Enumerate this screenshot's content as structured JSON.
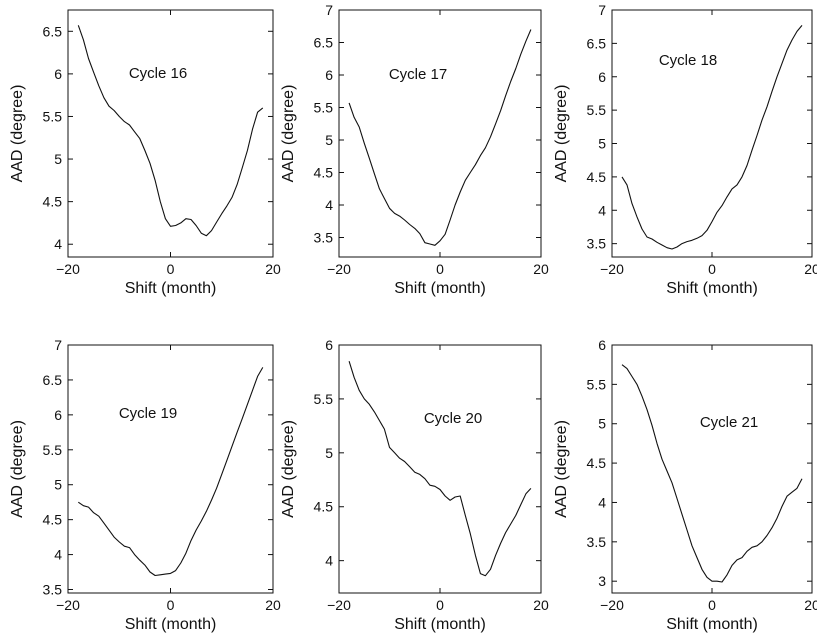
{
  "chart_data": [
    {
      "type": "line",
      "title": "Cycle 16",
      "xlabel": "Shift (month)",
      "ylabel": "AAD (degree)",
      "xlim": [
        -20,
        20
      ],
      "ylim": [
        3.85,
        6.75
      ],
      "xticks": [
        -20,
        0,
        20
      ],
      "yticks": [
        4,
        4.5,
        5,
        5.5,
        6,
        6.5
      ],
      "ytick_labels": [
        "4",
        "4.5",
        "5",
        "5.5",
        "6",
        "6.5"
      ],
      "grid": false,
      "series": [
        {
          "x": [
            -18,
            -17,
            -16,
            -15,
            -14,
            -13,
            -12,
            -11,
            -10,
            -9,
            -8,
            -7,
            -6,
            -5,
            -4,
            -3,
            -2,
            -1,
            0,
            1,
            2,
            3,
            4,
            5,
            6,
            7,
            8,
            9,
            10,
            11,
            12,
            13,
            14,
            15,
            16,
            17,
            18
          ],
          "y": [
            6.57,
            6.4,
            6.18,
            6.02,
            5.86,
            5.72,
            5.62,
            5.57,
            5.5,
            5.44,
            5.4,
            5.32,
            5.24,
            5.1,
            4.95,
            4.75,
            4.5,
            4.3,
            4.21,
            4.22,
            4.25,
            4.3,
            4.29,
            4.22,
            4.13,
            4.1,
            4.16,
            4.26,
            4.36,
            4.45,
            4.55,
            4.7,
            4.9,
            5.1,
            5.35,
            5.55,
            5.6
          ]
        }
      ]
    },
    {
      "type": "line",
      "title": "Cycle 17",
      "xlabel": "Shift (month)",
      "ylabel": "AAD (degree)",
      "xlim": [
        -20,
        20
      ],
      "ylim": [
        3.2,
        7
      ],
      "xticks": [
        -20,
        0,
        20
      ],
      "yticks": [
        3.5,
        4,
        4.5,
        5,
        5.5,
        6,
        6.5,
        7
      ],
      "ytick_labels": [
        "3.5",
        "4",
        "4.5",
        "5",
        "5.5",
        "6",
        "6.5",
        "7"
      ],
      "grid": false,
      "series": [
        {
          "x": [
            -18,
            -17,
            -16,
            -15,
            -14,
            -13,
            -12,
            -11,
            -10,
            -9,
            -8,
            -7,
            -6,
            -5,
            -4,
            -3,
            -2,
            -1,
            0,
            1,
            2,
            3,
            4,
            5,
            6,
            7,
            8,
            9,
            10,
            11,
            12,
            13,
            14,
            15,
            16,
            17,
            18
          ],
          "y": [
            5.57,
            5.35,
            5.2,
            4.95,
            4.72,
            4.48,
            4.25,
            4.1,
            3.95,
            3.87,
            3.83,
            3.77,
            3.7,
            3.64,
            3.56,
            3.42,
            3.4,
            3.38,
            3.45,
            3.55,
            3.77,
            4.0,
            4.2,
            4.38,
            4.5,
            4.62,
            4.76,
            4.88,
            5.05,
            5.25,
            5.45,
            5.68,
            5.9,
            6.1,
            6.32,
            6.52,
            6.7
          ]
        }
      ]
    },
    {
      "type": "line",
      "title": "Cycle 18",
      "xlabel": "Shift (month)",
      "ylabel": "AAD (degree)",
      "xlim": [
        -20,
        20
      ],
      "ylim": [
        3.3,
        7
      ],
      "xticks": [
        -20,
        0,
        20
      ],
      "yticks": [
        3.5,
        4,
        4.5,
        5,
        5.5,
        6,
        6.5,
        7
      ],
      "ytick_labels": [
        "3.5",
        "4",
        "4.5",
        "5",
        "5.5",
        "6",
        "6.5",
        "7"
      ],
      "grid": false,
      "series": [
        {
          "x": [
            -18,
            -17,
            -16,
            -15,
            -14,
            -13,
            -12,
            -11,
            -10,
            -9,
            -8,
            -7,
            -6,
            -5,
            -4,
            -3,
            -2,
            -1,
            0,
            1,
            2,
            3,
            4,
            5,
            6,
            7,
            8,
            9,
            10,
            11,
            12,
            13,
            14,
            15,
            16,
            17,
            18
          ],
          "y": [
            4.5,
            4.38,
            4.1,
            3.9,
            3.72,
            3.6,
            3.57,
            3.52,
            3.48,
            3.44,
            3.42,
            3.45,
            3.5,
            3.53,
            3.55,
            3.58,
            3.62,
            3.7,
            3.83,
            3.97,
            4.07,
            4.2,
            4.32,
            4.38,
            4.5,
            4.67,
            4.9,
            5.12,
            5.35,
            5.55,
            5.78,
            6.0,
            6.2,
            6.4,
            6.55,
            6.68,
            6.77
          ]
        }
      ]
    },
    {
      "type": "line",
      "title": "Cycle 19",
      "xlabel": "Shift (month)",
      "ylabel": "AAD (degree)",
      "xlim": [
        -20,
        20
      ],
      "ylim": [
        3.45,
        7
      ],
      "xticks": [
        -20,
        0,
        20
      ],
      "yticks": [
        3.5,
        4,
        4.5,
        5,
        5.5,
        6,
        6.5,
        7
      ],
      "ytick_labels": [
        "3.5",
        "4",
        "4.5",
        "5",
        "5.5",
        "6",
        "6.5",
        "7"
      ],
      "grid": false,
      "series": [
        {
          "x": [
            -18,
            -17,
            -16,
            -15,
            -14,
            -13,
            -12,
            -11,
            -10,
            -9,
            -8,
            -7,
            -6,
            -5,
            -4,
            -3,
            -2,
            -1,
            0,
            1,
            2,
            3,
            4,
            5,
            6,
            7,
            8,
            9,
            10,
            11,
            12,
            13,
            14,
            15,
            16,
            17,
            18
          ],
          "y": [
            4.75,
            4.7,
            4.68,
            4.6,
            4.55,
            4.45,
            4.35,
            4.25,
            4.18,
            4.12,
            4.1,
            4.0,
            3.92,
            3.85,
            3.75,
            3.7,
            3.71,
            3.72,
            3.73,
            3.77,
            3.88,
            4.02,
            4.2,
            4.35,
            4.48,
            4.62,
            4.78,
            4.95,
            5.15,
            5.35,
            5.55,
            5.75,
            5.95,
            6.15,
            6.35,
            6.55,
            6.68
          ]
        }
      ]
    },
    {
      "type": "line",
      "title": "Cycle 20",
      "xlabel": "Shift (month)",
      "ylabel": "AAD (degree)",
      "xlim": [
        -20,
        20
      ],
      "ylim": [
        3.7,
        6
      ],
      "xticks": [
        -20,
        0,
        20
      ],
      "yticks": [
        4,
        4.5,
        5,
        5.5,
        6
      ],
      "ytick_labels": [
        "4",
        "4.5",
        "5",
        "5.5",
        "6"
      ],
      "grid": false,
      "series": [
        {
          "x": [
            -18,
            -17,
            -16,
            -15,
            -14,
            -13,
            -12,
            -11,
            -10,
            -9,
            -8,
            -7,
            -6,
            -5,
            -4,
            -3,
            -2,
            -1,
            0,
            1,
            2,
            3,
            4,
            5,
            6,
            7,
            8,
            9,
            10,
            11,
            12,
            13,
            14,
            15,
            16,
            17,
            18
          ],
          "y": [
            5.85,
            5.7,
            5.58,
            5.5,
            5.45,
            5.38,
            5.3,
            5.22,
            5.05,
            5.0,
            4.95,
            4.92,
            4.87,
            4.82,
            4.8,
            4.76,
            4.7,
            4.69,
            4.66,
            4.6,
            4.56,
            4.59,
            4.6,
            4.42,
            4.25,
            4.05,
            3.88,
            3.86,
            3.92,
            4.05,
            4.16,
            4.26,
            4.34,
            4.42,
            4.52,
            4.62,
            4.67
          ]
        }
      ]
    },
    {
      "type": "line",
      "title": "Cycle 21",
      "xlabel": "Shift (month)",
      "ylabel": "AAD (degree)",
      "xlim": [
        -20,
        20
      ],
      "ylim": [
        2.85,
        6
      ],
      "xticks": [
        -20,
        0,
        20
      ],
      "yticks": [
        3,
        3.5,
        4,
        4.5,
        5,
        5.5,
        6
      ],
      "ytick_labels": [
        "3",
        "3.5",
        "4",
        "4.5",
        "5",
        "5.5",
        "6"
      ],
      "grid": false,
      "series": [
        {
          "x": [
            -18,
            -17,
            -16,
            -15,
            -14,
            -13,
            -12,
            -11,
            -10,
            -9,
            -8,
            -7,
            -6,
            -5,
            -4,
            -3,
            -2,
            -1,
            0,
            1,
            2,
            3,
            4,
            5,
            6,
            7,
            8,
            9,
            10,
            11,
            12,
            13,
            14,
            15,
            16,
            17,
            18
          ],
          "y": [
            5.75,
            5.7,
            5.6,
            5.5,
            5.35,
            5.18,
            4.98,
            4.75,
            4.55,
            4.4,
            4.25,
            4.05,
            3.85,
            3.65,
            3.45,
            3.3,
            3.15,
            3.05,
            3.0,
            3.0,
            2.99,
            3.08,
            3.2,
            3.27,
            3.3,
            3.38,
            3.43,
            3.45,
            3.5,
            3.58,
            3.68,
            3.8,
            3.95,
            4.08,
            4.13,
            4.18,
            4.3
          ]
        }
      ]
    }
  ]
}
